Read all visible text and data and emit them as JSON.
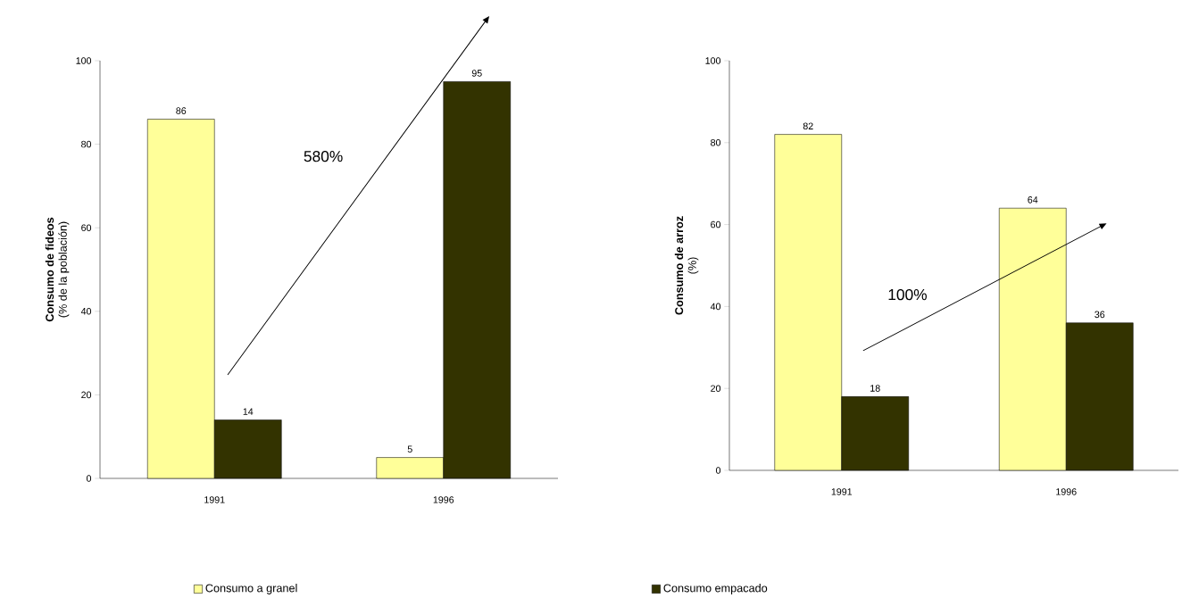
{
  "chart_data": [
    {
      "type": "bar",
      "ylabel": "**Consumo de fideos** (% de la población)",
      "categories": [
        "1991",
        "1996"
      ],
      "series": [
        {
          "name": "Consumo a granel",
          "color": "#ffff99",
          "values": [
            86,
            5
          ]
        },
        {
          "name": "Consumo empacado",
          "color": "#333300",
          "values": [
            14,
            95
          ]
        }
      ],
      "ylim": [
        0,
        100
      ],
      "yticks": [
        0,
        20,
        40,
        60,
        80,
        100
      ],
      "data_labels": true,
      "legend": "bottom",
      "annotations": [
        "580%"
      ]
    },
    {
      "type": "bar",
      "ylabel": "**Consumo de arroz** (%)",
      "categories": [
        "1991",
        "1996"
      ],
      "series": [
        {
          "color": "#ffff99",
          "values": [
            82,
            64
          ]
        },
        {
          "color": "#333300",
          "values": [
            18,
            36
          ]
        }
      ],
      "ylim": [
        0,
        100
      ],
      "yticks": [
        0,
        20,
        40,
        60,
        80,
        100
      ],
      "data_labels": true,
      "annotations": [
        "100%"
      ]
    }
  ]
}
